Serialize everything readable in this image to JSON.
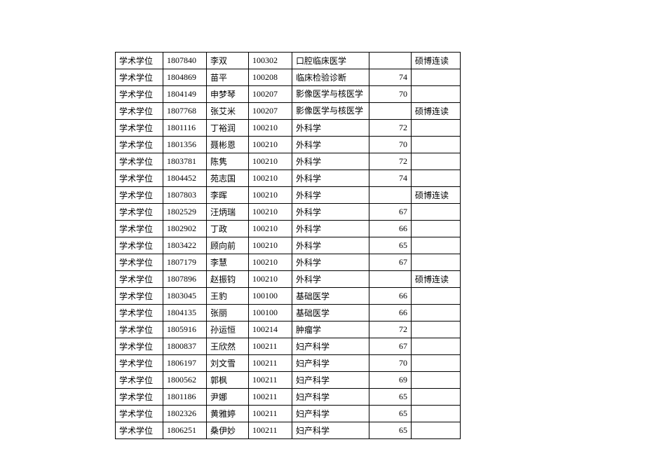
{
  "table": {
    "rows": [
      {
        "degree": "学术学位",
        "id": "1807840",
        "name": "李双",
        "code": "100302",
        "major": "口腔临床医学",
        "score": "",
        "note": "硕博连读",
        "wrap": false
      },
      {
        "degree": "学术学位",
        "id": "1804869",
        "name": "苗平",
        "code": "100208",
        "major": "临床检验诊断",
        "score": "74",
        "note": "",
        "wrap": false
      },
      {
        "degree": "学术学位",
        "id": "1804149",
        "name": "申梦琴",
        "code": "100207",
        "major": "影像医学与核医学",
        "score": "70",
        "note": "",
        "wrap": true
      },
      {
        "degree": "学术学位",
        "id": "1807768",
        "name": "张艾米",
        "code": "100207",
        "major": "影像医学与核医学",
        "score": "",
        "note": "硕博连读",
        "wrap": true
      },
      {
        "degree": "学术学位",
        "id": "1801116",
        "name": "丁裕润",
        "code": "100210",
        "major": "外科学",
        "score": "72",
        "note": "",
        "wrap": false
      },
      {
        "degree": "学术学位",
        "id": "1801356",
        "name": "聂彬恩",
        "code": "100210",
        "major": "外科学",
        "score": "70",
        "note": "",
        "wrap": false
      },
      {
        "degree": "学术学位",
        "id": "1803781",
        "name": "陈隽",
        "code": "100210",
        "major": "外科学",
        "score": "72",
        "note": "",
        "wrap": false
      },
      {
        "degree": "学术学位",
        "id": "1804452",
        "name": "苑志国",
        "code": "100210",
        "major": "外科学",
        "score": "74",
        "note": "",
        "wrap": false
      },
      {
        "degree": "学术学位",
        "id": "1807803",
        "name": "李晖",
        "code": "100210",
        "major": "外科学",
        "score": "",
        "note": "硕博连读",
        "wrap": false
      },
      {
        "degree": "学术学位",
        "id": "1802529",
        "name": "汪炳瑞",
        "code": "100210",
        "major": "外科学",
        "score": "67",
        "note": "",
        "wrap": false
      },
      {
        "degree": "学术学位",
        "id": "1802902",
        "name": "丁政",
        "code": "100210",
        "major": "外科学",
        "score": "66",
        "note": "",
        "wrap": false
      },
      {
        "degree": "学术学位",
        "id": "1803422",
        "name": "顾向前",
        "code": "100210",
        "major": "外科学",
        "score": "65",
        "note": "",
        "wrap": false
      },
      {
        "degree": "学术学位",
        "id": "1807179",
        "name": "李慧",
        "code": "100210",
        "major": "外科学",
        "score": "67",
        "note": "",
        "wrap": false
      },
      {
        "degree": "学术学位",
        "id": "1807896",
        "name": "赵振钧",
        "code": "100210",
        "major": "外科学",
        "score": "",
        "note": "硕博连读",
        "wrap": false
      },
      {
        "degree": "学术学位",
        "id": "1803045",
        "name": "王豹",
        "code": "100100",
        "major": "基础医学",
        "score": "66",
        "note": "",
        "wrap": false
      },
      {
        "degree": "学术学位",
        "id": "1804135",
        "name": "张丽",
        "code": "100100",
        "major": "基础医学",
        "score": "66",
        "note": "",
        "wrap": false
      },
      {
        "degree": "学术学位",
        "id": "1805916",
        "name": "孙运恒",
        "code": "100214",
        "major": "肿瘤学",
        "score": "72",
        "note": "",
        "wrap": false
      },
      {
        "degree": "学术学位",
        "id": "1800837",
        "name": "王欣然",
        "code": "100211",
        "major": "妇产科学",
        "score": "67",
        "note": "",
        "wrap": false
      },
      {
        "degree": "学术学位",
        "id": "1806197",
        "name": "刘文雪",
        "code": "100211",
        "major": "妇产科学",
        "score": "70",
        "note": "",
        "wrap": false
      },
      {
        "degree": "学术学位",
        "id": "1800562",
        "name": "郭枫",
        "code": "100211",
        "major": "妇产科学",
        "score": "69",
        "note": "",
        "wrap": false
      },
      {
        "degree": "学术学位",
        "id": "1801186",
        "name": "尹娜",
        "code": "100211",
        "major": "妇产科学",
        "score": "65",
        "note": "",
        "wrap": false
      },
      {
        "degree": "学术学位",
        "id": "1802326",
        "name": "黄雅婷",
        "code": "100211",
        "major": "妇产科学",
        "score": "65",
        "note": "",
        "wrap": false
      },
      {
        "degree": "学术学位",
        "id": "1806251",
        "name": "桑伊妙",
        "code": "100211",
        "major": "妇产科学",
        "score": "65",
        "note": "",
        "wrap": false
      }
    ]
  }
}
